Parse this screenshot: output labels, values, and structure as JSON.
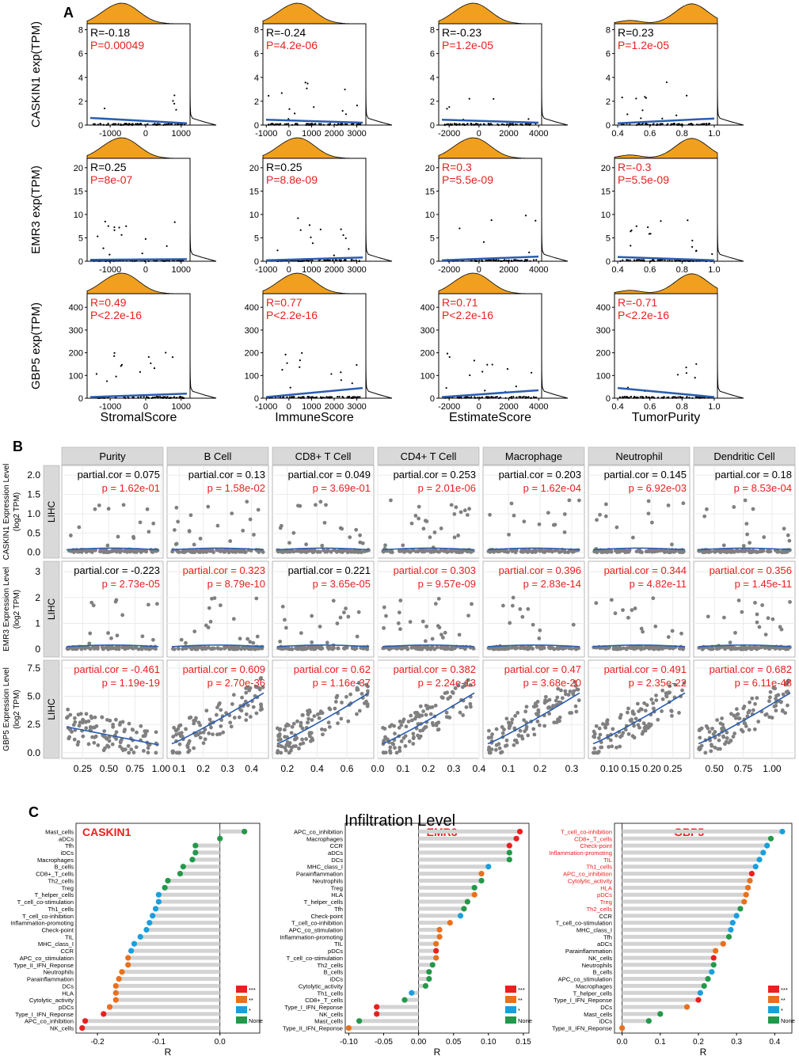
{
  "colors": {
    "red": "#e8201f",
    "orange": "#e8701e",
    "blue": "#1a9fdc",
    "green": "#24984a",
    "density": "#f0a01e",
    "fit": "#2a5db0",
    "point_grey": "#808080",
    "strip": "#d9d9d9",
    "grid": "#ebebeb",
    "bar": "#d3d3d3"
  },
  "panel_labels": {
    "a": "A",
    "b": "B",
    "c": "C"
  },
  "section_c_title": "Infiltration Level",
  "chart_data": [
    {
      "panel": "A",
      "type": "scatter",
      "genes": [
        {
          "name": "CASKIN1",
          "ylabel": "CASKIN1 exp(TPM)",
          "yticks": [
            "0",
            "2",
            "4",
            "6",
            "8"
          ],
          "ylim": [
            0,
            8.5
          ]
        },
        {
          "name": "EMR3",
          "ylabel": "EMR3 exp(TPM)",
          "yticks": [
            "0",
            "5",
            "10",
            "15",
            "20"
          ],
          "ylim": [
            0,
            22
          ]
        },
        {
          "name": "GBP5",
          "ylabel": "GBP5 exp(TPM)",
          "yticks": [
            "0",
            "100",
            "200",
            "300",
            "400"
          ],
          "ylim": [
            0,
            460
          ]
        }
      ],
      "scores": [
        {
          "name": "StromalScore",
          "xticks": [
            "-1000",
            "0",
            "1000"
          ],
          "xtick_values": [
            -1000,
            0,
            1000
          ],
          "xlim": [
            -1650,
            1250
          ]
        },
        {
          "name": "ImmuneScore",
          "xticks": [
            "-1000",
            "0",
            "1000",
            "2000",
            "3000"
          ],
          "xtick_values": [
            -1000,
            0,
            1000,
            2000,
            3000
          ],
          "xlim": [
            -1150,
            3400
          ]
        },
        {
          "name": "EstimateScore",
          "xticks": [
            "-2000",
            "0",
            "2000",
            "4000"
          ],
          "xtick_values": [
            -2000,
            0,
            2000,
            4000
          ],
          "xlim": [
            -2700,
            4200
          ]
        },
        {
          "name": "TumorPurity",
          "xticks": [
            "0.4",
            "0.6",
            "0.8",
            "1.0"
          ],
          "xtick_values": [
            0.4,
            0.6,
            0.8,
            1.0
          ],
          "xlim": [
            0.38,
            1.02
          ]
        }
      ],
      "stats": [
        [
          {
            "r": "R=-0.18",
            "p": "P=0.00049",
            "color": "black"
          },
          {
            "r": "R=-0.24",
            "p": "P=4.2e-06",
            "color": "black"
          },
          {
            "r": "R=-0.23",
            "p": "P=1.2e-05",
            "color": "black"
          },
          {
            "r": "R=0.23",
            "p": "P=1.2e-05",
            "color": "black"
          }
        ],
        [
          {
            "r": "R=0.25",
            "p": "P=8e-07",
            "color": "black"
          },
          {
            "r": "R=0.25",
            "p": "P=8.8e-09",
            "color": "black"
          },
          {
            "r": "R=0.3",
            "p": "P=5.5e-09",
            "color": "red"
          },
          {
            "r": "R=-0.3",
            "p": "P=5.5e-09",
            "color": "red"
          }
        ],
        [
          {
            "r": "R=0.49",
            "p": "P<2.2e-16",
            "color": "red"
          },
          {
            "r": "R=0.77",
            "p": "P<2.2e-16",
            "color": "red"
          },
          {
            "r": "R=0.71",
            "p": "P<2.2e-16",
            "color": "red"
          },
          {
            "r": "R=-0.71",
            "p": "P<2.2e-16",
            "color": "red"
          }
        ]
      ],
      "fit_lines": [
        [
          [
            0.6,
            0.15
          ],
          [
            0.45,
            0.2
          ],
          [
            0.45,
            0.2
          ],
          [
            0.15,
            0.55
          ]
        ],
        [
          [
            0.3,
            0.45
          ],
          [
            0.2,
            0.8
          ],
          [
            0.2,
            1.0
          ],
          [
            0.9,
            0.2
          ]
        ],
        [
          [
            5,
            20
          ],
          [
            5,
            45
          ],
          [
            5,
            35
          ],
          [
            45,
            5
          ]
        ]
      ]
    },
    {
      "panel": "B",
      "type": "scatter",
      "cancer": "LIHC",
      "cells": [
        "Purity",
        "B Cell",
        "CD8+ T Cell",
        "CD4+ T Cell",
        "Macrophage",
        "Neutrophil",
        "Dendritic Cell"
      ],
      "xticks": [
        {
          "labels": [
            "0.25",
            "0.50",
            "0.75",
            "1.00"
          ],
          "values": [
            0.25,
            0.5,
            0.75,
            1.0
          ],
          "xlim": [
            0.05,
            1.02
          ]
        },
        {
          "labels": [
            "0.1",
            "0.2",
            "0.3",
            "0.4"
          ],
          "values": [
            0.1,
            0.2,
            0.3,
            0.4
          ],
          "xlim": [
            0.05,
            0.47
          ]
        },
        {
          "labels": [
            "0.2",
            "0.4",
            "0.6"
          ],
          "values": [
            0.2,
            0.4,
            0.6
          ],
          "xlim": [
            0.1,
            0.78
          ]
        },
        {
          "labels": [
            "0.0",
            "0.1",
            "0.2",
            "0.3",
            "0.4"
          ],
          "values": [
            0.0,
            0.1,
            0.2,
            0.3,
            0.4
          ],
          "xlim": [
            0.0,
            0.4
          ]
        },
        {
          "labels": [
            "0.1",
            "0.2",
            "0.3"
          ],
          "values": [
            0.1,
            0.2,
            0.3
          ],
          "xlim": [
            0.02,
            0.34
          ]
        },
        {
          "labels": [
            "0.10",
            "0.15",
            "0.20",
            "0.25"
          ],
          "values": [
            0.1,
            0.15,
            0.2,
            0.25
          ],
          "xlim": [
            0.05,
            0.29
          ]
        },
        {
          "labels": [
            "0.50",
            "0.75",
            "1.00"
          ],
          "values": [
            0.5,
            0.75,
            1.0
          ],
          "xlim": [
            0.32,
            1.2
          ]
        }
      ],
      "genes": [
        {
          "ylabel": "CASKIN1 Expression Level\n(log2 TPM)",
          "yticks": [
            "0.0",
            "0.5",
            "1.0",
            "1.5",
            "2.0"
          ],
          "ylim": [
            -0.15,
            2.25
          ]
        },
        {
          "ylabel": "EMR3 Expression Level\n(log2 TPM)",
          "yticks": [
            "0",
            "1",
            "2",
            "3"
          ],
          "ylim": [
            -0.3,
            3.4
          ]
        },
        {
          "ylabel": "GBP5 Expression Level\n(log2 TPM)",
          "yticks": [
            "0.0",
            "2.5",
            "5.0",
            "7.5"
          ],
          "ylim": [
            -0.5,
            8.2
          ]
        }
      ],
      "stats": [
        [
          {
            "c": "partial.cor = 0.075",
            "p": "p = 1.62e-01",
            "cc": "black"
          },
          {
            "c": "partial.cor = 0.13",
            "p": "p = 1.58e-02",
            "cc": "black"
          },
          {
            "c": "partial.cor = 0.049",
            "p": "p = 3.69e-01",
            "cc": "black"
          },
          {
            "c": "partial.cor = 0.253",
            "p": "p = 2.01e-06",
            "cc": "black"
          },
          {
            "c": "partial.cor = 0.203",
            "p": "p = 1.62e-04",
            "cc": "black"
          },
          {
            "c": "partial.cor = 0.145",
            "p": "p = 6.92e-03",
            "cc": "black"
          },
          {
            "c": "partial.cor = 0.18",
            "p": "p = 8.53e-04",
            "cc": "black"
          }
        ],
        [
          {
            "c": "partial.cor = -0.223",
            "p": "p = 2.73e-05",
            "cc": "black"
          },
          {
            "c": "partial.cor = 0.323",
            "p": "p = 8.79e-10",
            "cc": "red"
          },
          {
            "c": "partial.cor = 0.221",
            "p": "p = 3.65e-05",
            "cc": "black"
          },
          {
            "c": "partial.cor = 0.303",
            "p": "p = 9.57e-09",
            "cc": "red"
          },
          {
            "c": "partial.cor = 0.396",
            "p": "p = 2.83e-14",
            "cc": "red"
          },
          {
            "c": "partial.cor = 0.344",
            "p": "p = 4.82e-11",
            "cc": "red"
          },
          {
            "c": "partial.cor = 0.356",
            "p": "p = 1.45e-11",
            "cc": "red"
          }
        ],
        [
          {
            "c": "partial.cor = -0.461",
            "p": "p = 1.19e-19",
            "cc": "red"
          },
          {
            "c": "partial.cor = 0.609",
            "p": "p = 2.70e-36",
            "cc": "red"
          },
          {
            "c": "partial.cor = 0.62",
            "p": "p = 1.16e-37",
            "cc": "red"
          },
          {
            "c": "partial.cor = 0.382",
            "p": "p = 2.24e-13",
            "cc": "red"
          },
          {
            "c": "partial.cor = 0.47",
            "p": "p = 3.68e-20",
            "cc": "red"
          },
          {
            "c": "partial.cor = 0.491",
            "p": "p = 2.35e-22",
            "cc": "red"
          },
          {
            "c": "partial.cor = 0.682",
            "p": "p = 6.11e-48",
            "cc": "red"
          }
        ]
      ]
    },
    {
      "panel": "C",
      "type": "bar",
      "subtype": "lollipop",
      "title": "Infiltration Level",
      "xlabel": "R",
      "legend": [
        "***",
        "**",
        "*",
        "None"
      ],
      "plots": [
        {
          "gene": "CASKIN1",
          "xlim": [
            -0.235,
            0.065
          ],
          "xticks": [
            -0.2,
            -0.1,
            0.0
          ],
          "xtick_labels": [
            "-0.2",
            "-0.1",
            "0.0"
          ],
          "categories": [
            "Mast_cells",
            "aDCs",
            "Tfh",
            "iDCs",
            "Macrophages",
            "B_cells",
            "CD8+_T_cells",
            "Th2_cells",
            "Treg",
            "T_helper_cells",
            "T_cell_co-stimulation",
            "Th1_cells",
            "T_cell_co-inhibition",
            "Inflammation-promoting",
            "Check-point",
            "TIL",
            "MHC_class_I",
            "CCR",
            "APC_co_stimulation",
            "Type_II_IFN_Reponse",
            "Neutrophils",
            "Parainflammation",
            "DCs",
            "HLA",
            "Cytolytic_activity",
            "pDCs",
            "Type_I_IFN_Reponse",
            "APC_co_inhibition",
            "NK_cells"
          ],
          "values": [
            0.04,
            0.0,
            -0.04,
            -0.04,
            -0.045,
            -0.06,
            -0.065,
            -0.085,
            -0.09,
            -0.1,
            -0.1,
            -0.105,
            -0.11,
            -0.115,
            -0.12,
            -0.13,
            -0.14,
            -0.145,
            -0.15,
            -0.15,
            -0.16,
            -0.165,
            -0.17,
            -0.17,
            -0.17,
            -0.18,
            -0.19,
            -0.22,
            -0.225
          ],
          "significance": [
            "None",
            "None",
            "None",
            "None",
            "None",
            "None",
            "None",
            "None",
            "None",
            "*",
            "*",
            "*",
            "*",
            "*",
            "*",
            "*",
            "*",
            "*",
            "**",
            "**",
            "**",
            "**",
            "**",
            "**",
            "**",
            "**",
            "***",
            "***",
            "***"
          ],
          "red_labels": []
        },
        {
          "gene": "EMR3",
          "xlim": [
            -0.105,
            0.158
          ],
          "xticks": [
            -0.1,
            -0.05,
            0.0,
            0.05,
            0.1,
            0.15
          ],
          "xtick_labels": [
            "-0.10",
            "-0.05",
            "0.00",
            "0.05",
            "0.10",
            "0.15"
          ],
          "categories": [
            "APC_co_inhibition",
            "Macrophages",
            "CCR",
            "aDCs",
            "DCs",
            "MHC_class_I",
            "Parainflammation",
            "Neutrophils",
            "Treg",
            "HLA",
            "T_helper_cells",
            "Tfh",
            "Check-point",
            "T_cell_co-inhibition",
            "APC_co_stimulation",
            "Inflammation-promoting",
            "TIL",
            "pDCs",
            "T_cell_co-stimulation",
            "Th2_cells",
            "B_cells",
            "iDCs",
            "Cytolytic_activity",
            "Th1_cells",
            "CD8+_T_cells",
            "Type_I_IFN_Reponse",
            "NK_cells",
            "Mast_cells",
            "Type_II_IFN_Reponse"
          ],
          "values": [
            0.145,
            0.14,
            0.13,
            0.13,
            0.13,
            0.1,
            0.09,
            0.09,
            0.08,
            0.08,
            0.07,
            0.065,
            0.06,
            0.045,
            0.03,
            0.03,
            0.025,
            0.025,
            0.025,
            0.02,
            0.015,
            0.015,
            0.01,
            -0.01,
            -0.02,
            -0.06,
            -0.06,
            -0.085,
            -0.1
          ],
          "significance": [
            "***",
            "***",
            "***",
            "None",
            "None",
            "*",
            "**",
            "None",
            "None",
            "**",
            "None",
            "None",
            "*",
            "**",
            "**",
            "**",
            "**",
            "***",
            "**",
            "None",
            "None",
            "None",
            "None",
            "*",
            "None",
            "***",
            "***",
            "None",
            "**"
          ],
          "red_labels": []
        },
        {
          "gene": "GBP5",
          "xlim": [
            -0.02,
            0.445
          ],
          "xticks": [
            0.0,
            0.1,
            0.2,
            0.3,
            0.4
          ],
          "xtick_labels": [
            "0.0",
            "0.1",
            "0.2",
            "0.3",
            "0.4"
          ],
          "categories": [
            "T_cell_co-inhibition",
            "CD8+_T_cells",
            "Check-point",
            "Inflammation-promoting",
            "TIL",
            "Th1_cells",
            "APC_co_inhibition",
            "Cytolytic_activity",
            "HLA",
            "pDCs",
            "Treg",
            "Th2_cells",
            "CCR",
            "T_cell_co-stimulation",
            "MHC_class_I",
            "Tfh",
            "aDCs",
            "Parainflammation",
            "NK_cells",
            "Neutrophils",
            "B_cells",
            "APC_co_stimulation",
            "Macrophages",
            "T_helper_cells",
            "Type_I_IFN_Reponse",
            "DCs",
            "Mast_cells",
            "iDCs",
            "Type_II_IFN_Reponse"
          ],
          "values": [
            0.42,
            0.39,
            0.38,
            0.37,
            0.36,
            0.35,
            0.34,
            0.335,
            0.33,
            0.325,
            0.32,
            0.31,
            0.3,
            0.29,
            0.285,
            0.28,
            0.265,
            0.245,
            0.24,
            0.24,
            0.235,
            0.225,
            0.215,
            0.205,
            0.2,
            0.17,
            0.1,
            0.07,
            0.0
          ],
          "significance": [
            "*",
            "None",
            "*",
            "*",
            "*",
            "*",
            "***",
            "**",
            "**",
            "**",
            "**",
            "None",
            "*",
            "*",
            "*",
            "None",
            "**",
            "**",
            "***",
            "None",
            "*",
            "None",
            "None",
            "*",
            "***",
            "**",
            "None",
            "None",
            "**"
          ],
          "red_labels": [
            "T_cell_co-inhibition",
            "CD8+_T_cells",
            "Check-point",
            "Inflammation-promoting",
            "TIL",
            "Th1_cells",
            "APC_co_inhibition",
            "Cytolytic_activity",
            "HLA",
            "pDCs",
            "Treg",
            "Th2_cells"
          ]
        }
      ]
    }
  ]
}
